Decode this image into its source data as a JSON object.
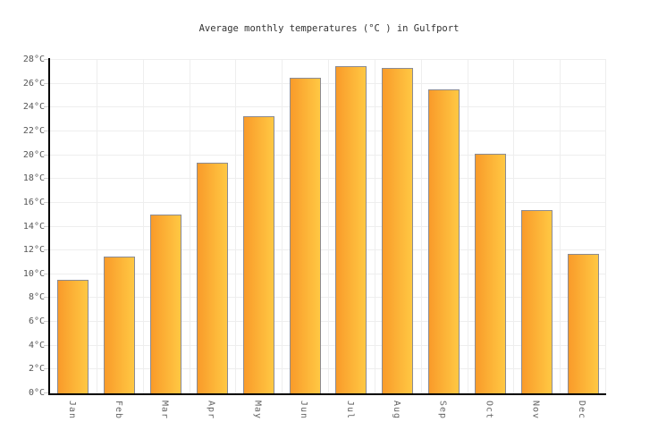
{
  "chart_data": {
    "type": "bar",
    "title": "Average monthly temperatures (°C ) in Gulfport",
    "categories": [
      "Jan",
      "Feb",
      "Mar",
      "Apr",
      "May",
      "Jun",
      "Jul",
      "Aug",
      "Sep",
      "Oct",
      "Nov",
      "Dec"
    ],
    "values": [
      9.5,
      11.5,
      15.0,
      19.4,
      23.3,
      26.5,
      27.5,
      27.3,
      25.5,
      20.1,
      15.4,
      11.7
    ],
    "unit": "°C",
    "ylabel": "",
    "xlabel": "",
    "ylim": [
      0,
      28
    ],
    "ytick_step": 2,
    "yticks": [
      "0°C",
      "2°C",
      "4°C",
      "6°C",
      "8°C",
      "10°C",
      "12°C",
      "14°C",
      "16°C",
      "18°C",
      "20°C",
      "22°C",
      "24°C",
      "26°C",
      "28°C"
    ],
    "grid": "on",
    "legend": "none",
    "colors": {
      "bar_gradient_left": "#f99b2a",
      "bar_gradient_right": "#ffc843",
      "bar_border": "#8b8b93",
      "axis": "#000000",
      "gridline": "#eeeeee",
      "tick": "#cccccc",
      "title_text": "#333333",
      "y_label_text": "#555555",
      "x_label_text": "#666666",
      "background": "#ffffff"
    }
  }
}
